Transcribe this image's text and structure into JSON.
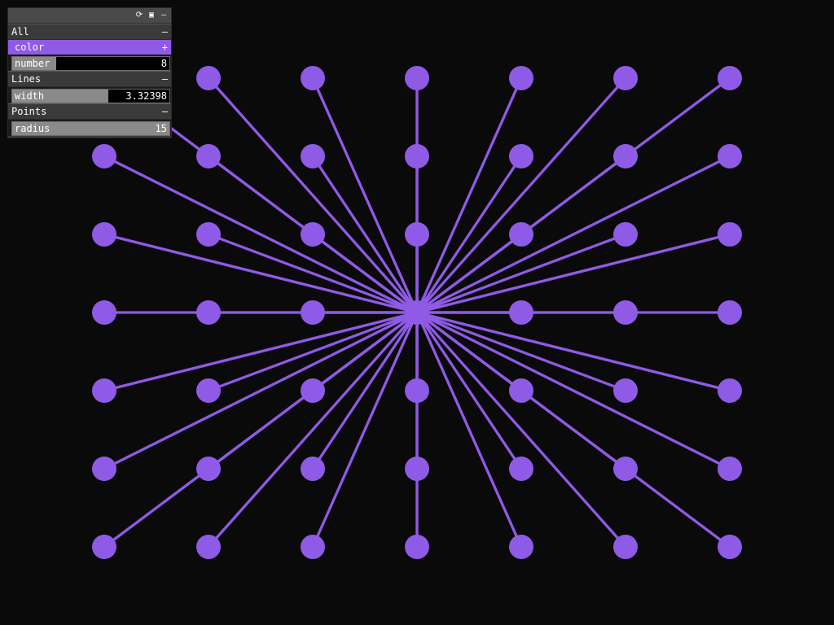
{
  "colors": {
    "background": "#0a0a0a",
    "accent": "#8f5ae6",
    "panel": "#1a1a1a",
    "panel_header": "#3a3a3a",
    "slider_fill": "#8a8a8a"
  },
  "gui": {
    "titlebar_icons": [
      "refresh-icon",
      "save-icon",
      "collapse-icon"
    ],
    "titlebar_glyphs": {
      "refresh": "⟳",
      "save": "▣",
      "collapse": "–"
    },
    "folders": {
      "all": {
        "title": "All",
        "toggle": "–",
        "color_label": "color",
        "color_toggle": "+",
        "number_label": "number",
        "number_value": "8",
        "number_fraction": 0.28
      },
      "lines": {
        "title": "Lines",
        "toggle": "–",
        "width_label": "width",
        "width_value": "3.32398",
        "width_fraction": 0.61
      },
      "points": {
        "title": "Points",
        "toggle": "–",
        "radius_label": "radius",
        "radius_value": "15",
        "radius_fraction": 1.0
      }
    }
  },
  "scene": {
    "point_color": "#8f5ae6",
    "line_color": "#8f5ae6",
    "grid_columns": 7,
    "grid_rows": 7,
    "center": {
      "col": 3,
      "row": 3
    },
    "point_radius": 15,
    "line_width": 3.32398
  }
}
